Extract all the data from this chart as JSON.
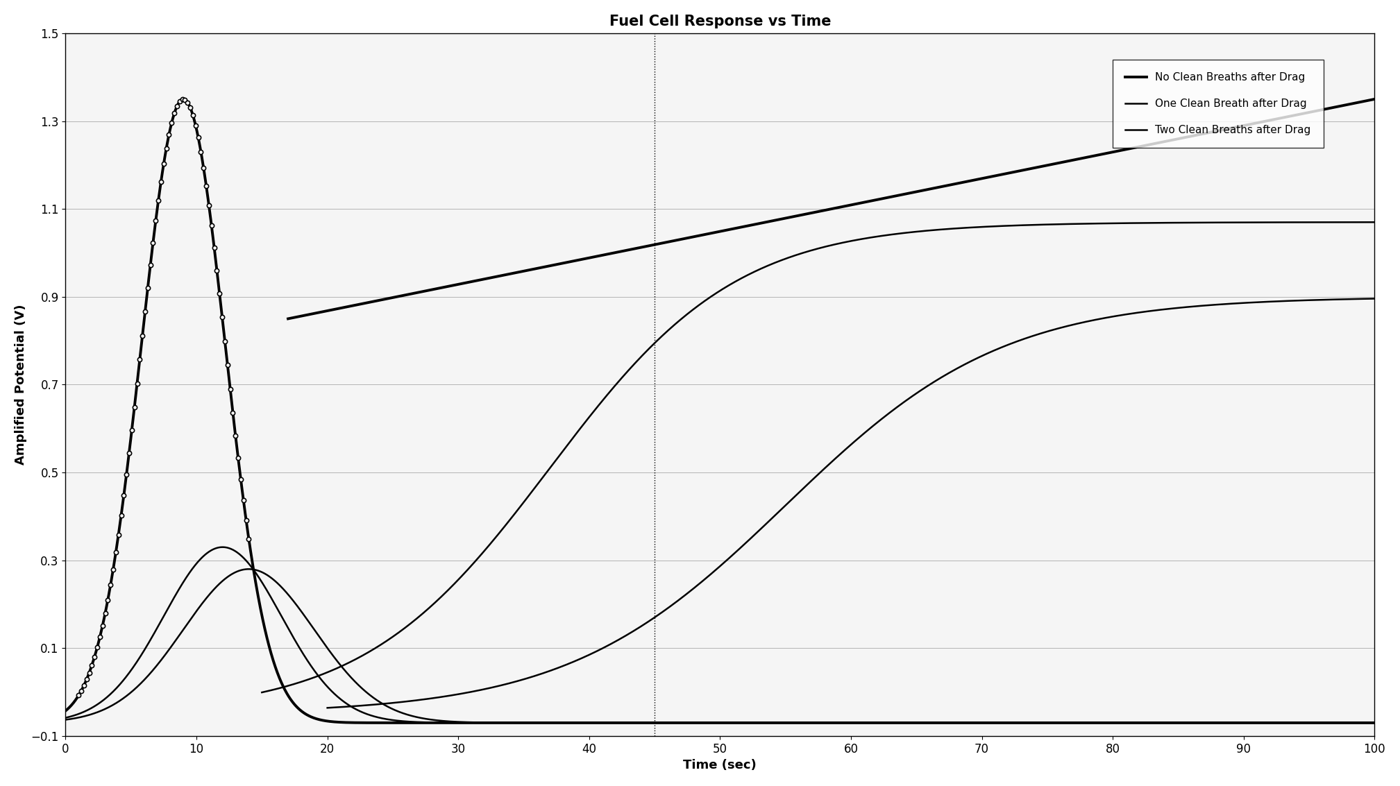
{
  "title": "Fuel Cell Response vs Time",
  "xlabel": "Time (sec)",
  "ylabel": "Amplified Potential (V)",
  "xlim": [
    0,
    100
  ],
  "ylim": [
    -0.1,
    1.5
  ],
  "xticks": [
    0,
    10,
    20,
    30,
    40,
    50,
    60,
    70,
    80,
    90,
    100
  ],
  "yticks": [
    -0.1,
    0.1,
    0.3,
    0.5,
    0.7,
    0.9,
    1.1,
    1.3,
    1.5
  ],
  "background_color": "#ffffff",
  "plot_bg_color": "#f5f5f5",
  "legend_labels": [
    "No Clean Breaths after Drag",
    "One Clean Breath after Drag",
    "Two Clean Breaths after Drag"
  ],
  "title_fontsize": 15,
  "axis_fontsize": 13,
  "tick_fontsize": 12,
  "legend_fontsize": 11,
  "vline_x": 45
}
